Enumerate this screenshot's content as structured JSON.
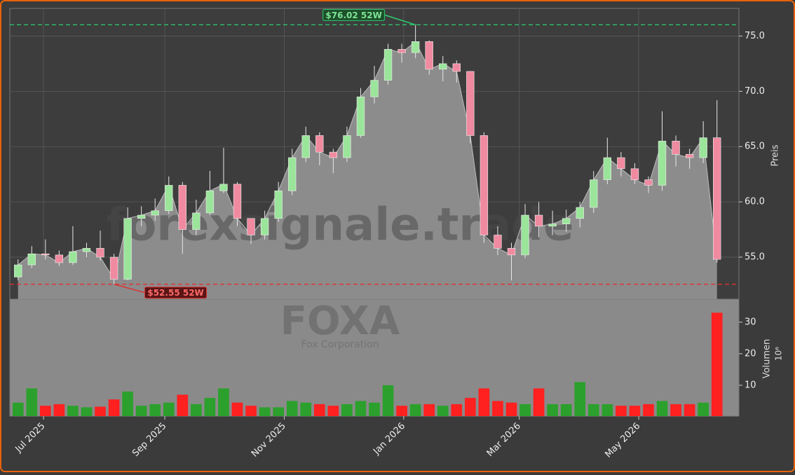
{
  "chart_data": {
    "type": "candlestick",
    "watermark": "forexsignale.trade",
    "ticker": "FOXA",
    "company": "Fox Corporation",
    "ylabel": "Preis",
    "volume_label": "Volumen",
    "volume_exponent": "10⁶",
    "xlim": [
      -0.6,
      52.6
    ],
    "xticks": [
      {
        "value": 1.86,
        "label": "Jul 2025"
      },
      {
        "value": 10.71,
        "label": "Sep 2025"
      },
      {
        "value": 19.43,
        "label": "Nov 2025"
      },
      {
        "value": 28.14,
        "label": "Jan 2026"
      },
      {
        "value": 36.57,
        "label": "Mar 2026"
      },
      {
        "value": 45.29,
        "label": "May 2026"
      }
    ],
    "ylim": [
      51.2,
      77.5
    ],
    "yticks": [
      {
        "value": 55,
        "label": "55.0"
      },
      {
        "value": 60,
        "label": "60.0"
      },
      {
        "value": 65,
        "label": "65.0"
      },
      {
        "value": 70,
        "label": "70.0"
      },
      {
        "value": 75,
        "label": "75.0"
      }
    ],
    "volume_ylim": [
      0.2,
      37.3
    ],
    "volume_yticks": [
      10,
      20,
      30
    ],
    "grid": true,
    "up_color": "#2ca02c",
    "down_color": "#ff2020",
    "area_color": "#8c8c8c",
    "open": [
      53.2,
      54.3,
      55.3,
      55.2,
      54.5,
      55.5,
      55.8,
      55.0,
      53.0,
      58.5,
      58.8,
      59.2,
      61.5,
      57.5,
      59.0,
      61.0,
      61.6,
      58.5,
      57.0,
      58.5,
      61.0,
      64.0,
      66.0,
      64.5,
      64.0,
      66.0,
      69.5,
      71.0,
      73.8,
      73.5,
      74.5,
      72.0,
      72.5,
      71.8,
      66.0,
      57.0,
      55.8,
      55.2,
      58.8,
      57.8,
      58.0,
      58.5,
      59.5,
      62.0,
      64.0,
      63.0,
      62.0,
      61.5,
      65.5,
      64.3,
      64.0,
      65.8
    ],
    "high": [
      54.8,
      56.0,
      56.6,
      55.6,
      57.8,
      56.3,
      57.4,
      55.3,
      59.5,
      59.6,
      60.3,
      62.3,
      61.8,
      60.2,
      62.8,
      64.9,
      61.8,
      58.3,
      59.2,
      61.8,
      64.8,
      66.8,
      66.3,
      64.8,
      66.8,
      70.3,
      72.3,
      74.3,
      74.3,
      76.02,
      74.6,
      73.2,
      72.8,
      71.8,
      66.3,
      57.8,
      56.3,
      59.8,
      60.0,
      59.2,
      59.3,
      60.0,
      62.8,
      65.8,
      64.5,
      63.5,
      62.3,
      68.2,
      66.0,
      64.8,
      67.3,
      69.2
    ],
    "low": [
      52.9,
      54.0,
      54.8,
      54.2,
      54.3,
      55.0,
      54.7,
      52.55,
      52.9,
      57.8,
      58.3,
      58.9,
      55.3,
      57.0,
      58.8,
      60.8,
      57.8,
      56.2,
      56.6,
      58.2,
      60.6,
      63.6,
      63.3,
      62.6,
      63.6,
      65.8,
      68.9,
      70.6,
      72.6,
      73.0,
      71.5,
      70.9,
      70.8,
      65.3,
      56.3,
      55.2,
      52.9,
      54.9,
      56.8,
      57.0,
      57.3,
      57.7,
      59.0,
      61.6,
      62.3,
      61.6,
      60.8,
      61.0,
      63.2,
      63.0,
      63.5,
      54.5
    ],
    "close": [
      54.3,
      55.3,
      55.2,
      54.5,
      55.5,
      55.8,
      55.0,
      53.0,
      58.5,
      58.8,
      59.2,
      61.5,
      57.5,
      59.0,
      61.0,
      61.6,
      58.5,
      57.0,
      58.5,
      61.0,
      64.0,
      66.0,
      64.5,
      64.0,
      66.0,
      69.5,
      71.0,
      73.8,
      73.5,
      74.5,
      72.0,
      72.5,
      71.8,
      66.0,
      57.0,
      55.8,
      55.2,
      58.8,
      57.8,
      58.0,
      58.5,
      59.5,
      62.0,
      64.0,
      63.0,
      62.0,
      61.5,
      65.5,
      64.3,
      64.0,
      65.8,
      54.8
    ],
    "volume": [
      4.5,
      9,
      3.5,
      4,
      3.5,
      3,
      3.2,
      5.5,
      8,
      3.5,
      4,
      4.5,
      7,
      4,
      6,
      9,
      4.5,
      3.5,
      3,
      3,
      5,
      4.5,
      4,
      3.5,
      4,
      5,
      4.5,
      10,
      3.5,
      4,
      4,
      3.5,
      4,
      6,
      9,
      5,
      4.5,
      4,
      9,
      4,
      4,
      11,
      4,
      4,
      3.5,
      3.5,
      4,
      5,
      4,
      4,
      4.5,
      33
    ],
    "annotations": [
      {
        "value": 76.02,
        "label": "$76.02 52W",
        "color": "#2ecc71",
        "box_color": "#1d4f2a",
        "text_color": "#7be495"
      },
      {
        "value": 52.55,
        "label": "$52.55 52W",
        "color": "#e03030",
        "box_color": "#5a1515",
        "text_color": "#ff6b6b"
      }
    ]
  }
}
